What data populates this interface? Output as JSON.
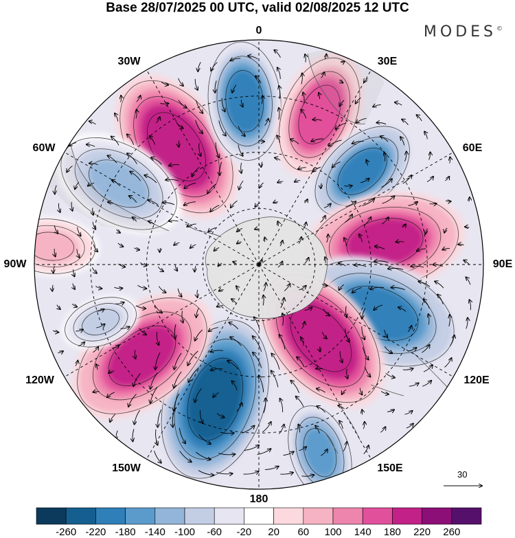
{
  "title": "Base 28/07/2025 00 UTC, valid 02/08/2025 12 UTC",
  "brand": "MODES",
  "brand_mark": "©",
  "longitude_labels": {
    "lon_0": "0",
    "lon_30e": "30E",
    "lon_60e": "60E",
    "lon_90e": "90E",
    "lon_120e": "120E",
    "lon_150e": "150E",
    "lon_180": "180",
    "lon_150w": "150W",
    "lon_120w": "120W",
    "lon_90w": "90W",
    "lon_60w": "60W",
    "lon_30w": "30W"
  },
  "reference_vector": {
    "label": "30"
  },
  "colorbar": {
    "colors": [
      "#0b3a5c",
      "#145f8f",
      "#2f7fb8",
      "#5a9bcb",
      "#93b5d9",
      "#c3cde4",
      "#e6e5f1",
      "#ffffff",
      "#fbd9de",
      "#f6b3c3",
      "#ee85ad",
      "#e1509a",
      "#c22187",
      "#8c0f78",
      "#55106b"
    ],
    "labels": [
      "-260",
      "-220",
      "-180",
      "-140",
      "-100",
      "-60",
      "-20",
      "20",
      "60",
      "100",
      "140",
      "180",
      "220",
      "260"
    ]
  },
  "anomaly_centers": [
    {
      "lon": -35,
      "r": 0.64,
      "value": 220,
      "size": 1.0
    },
    {
      "lon": -5,
      "r": 0.73,
      "value": -180,
      "size": 0.8
    },
    {
      "lon": 22,
      "r": 0.72,
      "value": 180,
      "size": 0.8
    },
    {
      "lon": 48,
      "r": 0.62,
      "value": -200,
      "size": 0.75
    },
    {
      "lon": 80,
      "r": 0.57,
      "value": 200,
      "size": 1.0
    },
    {
      "lon": 112,
      "r": 0.58,
      "value": -200,
      "size": 1.05
    },
    {
      "lon": 140,
      "r": 0.43,
      "value": 220,
      "size": 1.0
    },
    {
      "lon": 162,
      "r": 0.88,
      "value": -160,
      "size": 0.65
    },
    {
      "lon": -162,
      "r": 0.63,
      "value": -240,
      "size": 1.1
    },
    {
      "lon": -128,
      "r": 0.66,
      "value": 200,
      "size": 1.0
    },
    {
      "lon": -110,
      "r": 0.75,
      "value": -80,
      "size": 0.5
    },
    {
      "lon": -85,
      "r": 0.93,
      "value": 80,
      "size": 0.6
    },
    {
      "lon": -60,
      "r": 0.72,
      "value": -100,
      "size": 0.85
    }
  ]
}
